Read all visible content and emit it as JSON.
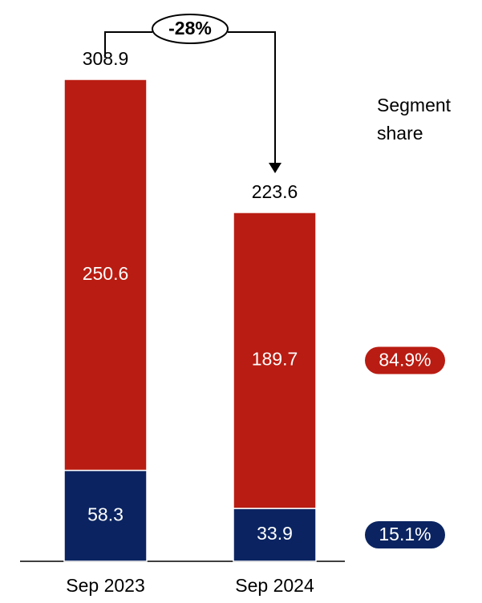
{
  "chart_data": {
    "type": "stacked-bar",
    "categories": [
      "Sep 2023",
      "Sep 2024"
    ],
    "series": [
      {
        "color": "#0b2461",
        "values": [
          58.3,
          33.9
        ]
      },
      {
        "color": "#b91c12",
        "values": [
          250.6,
          189.7
        ]
      }
    ],
    "totals": [
      308.9,
      223.6
    ],
    "annotation": "-28%",
    "segment_share": {
      "title": "Segment share",
      "values": [
        15.1,
        84.9
      ],
      "value_labels": [
        "15.1%",
        "84.9%"
      ]
    }
  }
}
